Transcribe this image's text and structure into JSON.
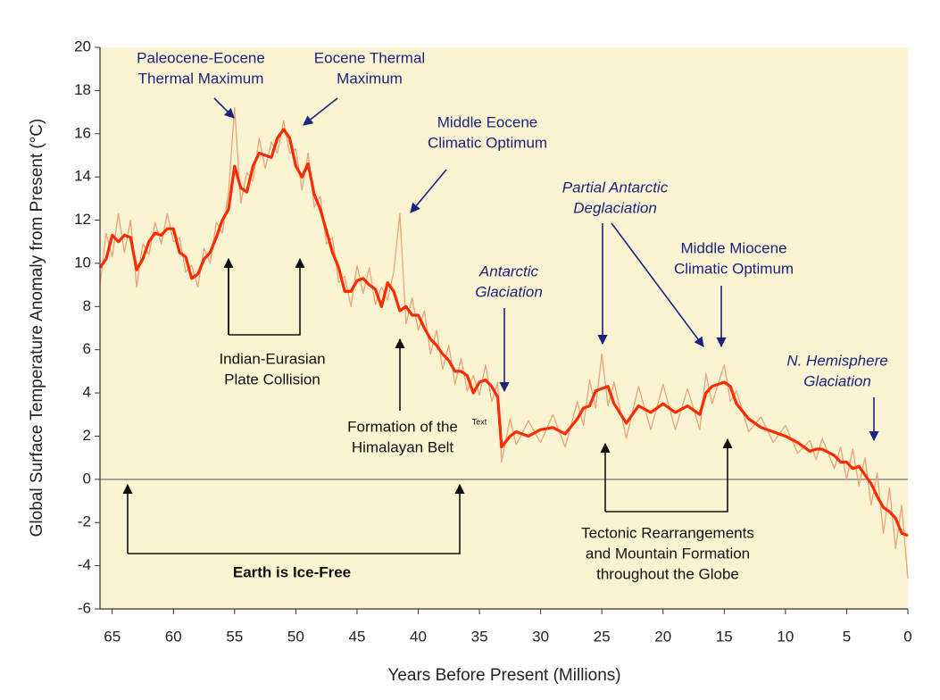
{
  "chart_data": {
    "type": "line",
    "x_label": "Years Before Present (Millions)",
    "y_label": "Global Surface Temperature Anomaly from Present (°C)",
    "xlim": [
      66,
      0
    ],
    "ylim": [
      -6,
      20
    ],
    "xticks": [
      65,
      60,
      55,
      50,
      45,
      40,
      35,
      30,
      25,
      20,
      15,
      10,
      5,
      0
    ],
    "yticks": [
      -6,
      -4,
      -2,
      0,
      2,
      4,
      6,
      8,
      10,
      12,
      14,
      16,
      18,
      20
    ],
    "zero_line": true,
    "background": "#fbf4d2",
    "x": [
      66,
      65.5,
      65,
      64.5,
      64,
      63.5,
      63,
      62.5,
      62,
      61.5,
      61,
      60.5,
      60,
      59.5,
      59,
      58.5,
      58,
      57.5,
      57,
      56.5,
      56,
      55.5,
      55,
      54.5,
      54,
      53.5,
      53,
      52.5,
      52,
      51.5,
      51,
      50.5,
      50,
      49.5,
      49,
      48.5,
      48,
      47.5,
      47,
      46.5,
      46,
      45.5,
      45,
      44.5,
      44,
      43.5,
      43,
      42.5,
      42,
      41.5,
      41,
      40.5,
      40,
      39.5,
      39,
      38.5,
      38,
      37.5,
      37,
      36.5,
      36,
      35.5,
      35,
      34.5,
      34,
      33.5,
      33.2,
      32.5,
      32,
      31,
      30,
      29,
      28,
      27,
      26.5,
      26,
      25.5,
      25,
      24.5,
      24,
      23,
      22,
      21,
      20,
      19,
      18,
      17,
      16.5,
      16,
      15,
      14.5,
      14,
      13,
      12,
      11,
      10,
      9,
      8,
      7.5,
      7,
      6,
      5.5,
      5,
      4.5,
      4,
      3.5,
      3,
      2.5,
      2,
      1.5,
      1,
      0.5,
      0
    ],
    "series": [
      {
        "color": "#e9a47a",
        "width": 1.3,
        "values": [
          9.0,
          11.4,
          10.3,
          12.3,
          10.5,
          12.0,
          8.9,
          10.9,
          10.4,
          11.9,
          10.9,
          12.3,
          11.0,
          11.2,
          9.6,
          9.9,
          8.9,
          10.7,
          10.0,
          11.9,
          11.4,
          13.3,
          17.2,
          12.8,
          14.2,
          13.8,
          15.8,
          14.4,
          15.6,
          15.1,
          16.6,
          15.1,
          15.3,
          13.4,
          15.1,
          12.6,
          13.1,
          10.9,
          11.2,
          9.1,
          9.4,
          8.0,
          9.9,
          8.6,
          9.8,
          8.1,
          8.9,
          8.3,
          9.6,
          12.3,
          7.2,
          8.4,
          6.9,
          7.8,
          5.8,
          6.9,
          5.1,
          6.2,
          4.4,
          5.6,
          4.1,
          4.8,
          3.9,
          5.3,
          3.6,
          4.5,
          0.8,
          2.8,
          1.6,
          2.7,
          1.7,
          3.0,
          1.5,
          3.6,
          2.5,
          4.6,
          3.3,
          5.8,
          3.4,
          4.5,
          1.9,
          4.3,
          2.3,
          4.4,
          2.3,
          4.2,
          2.3,
          4.9,
          3.5,
          5.3,
          3.6,
          4.1,
          2.2,
          2.9,
          1.7,
          2.5,
          1.2,
          1.8,
          0.9,
          1.9,
          0.5,
          1.5,
          0.0,
          1.4,
          -0.3,
          1.0,
          -1.2,
          0.3,
          -2.5,
          -0.4,
          -3.2,
          -1.2,
          -4.6
        ]
      },
      {
        "color": "#ff2a00",
        "width": 3.2,
        "values": [
          9.8,
          10.2,
          11.3,
          11.0,
          11.3,
          11.2,
          9.7,
          10.2,
          11.0,
          11.4,
          11.3,
          11.6,
          11.6,
          10.5,
          10.3,
          9.3,
          9.5,
          10.2,
          10.5,
          11.2,
          12.0,
          12.5,
          14.5,
          13.5,
          13.3,
          14.5,
          15.1,
          15.0,
          14.9,
          15.8,
          16.2,
          15.8,
          14.5,
          14.0,
          14.6,
          13.2,
          12.5,
          11.5,
          10.5,
          9.8,
          8.7,
          8.7,
          9.2,
          9.3,
          9.0,
          8.8,
          8.0,
          9.1,
          8.7,
          7.8,
          8.0,
          7.6,
          7.6,
          7.0,
          6.5,
          6.2,
          5.8,
          5.5,
          5.0,
          5.0,
          4.8,
          4.0,
          4.5,
          4.6,
          4.3,
          3.8,
          1.5,
          2.0,
          2.2,
          2.0,
          2.3,
          2.4,
          2.1,
          2.8,
          3.3,
          3.4,
          4.1,
          4.2,
          4.3,
          3.5,
          2.6,
          3.4,
          3.1,
          3.5,
          3.1,
          3.4,
          3.0,
          4.0,
          4.3,
          4.5,
          4.3,
          3.5,
          2.8,
          2.4,
          2.2,
          2.0,
          1.7,
          1.3,
          1.4,
          1.4,
          1.1,
          0.8,
          0.8,
          0.5,
          0.6,
          0.2,
          -0.2,
          -0.8,
          -1.3,
          -1.5,
          -1.8,
          -2.5,
          -2.6
        ]
      }
    ],
    "annotations": [
      {
        "lines": [
          "Paleocene-Eocene",
          "Thermal Maximum"
        ],
        "color": "#1a237e",
        "style": "normal"
      },
      {
        "lines": [
          "Eocene Thermal",
          "Maximum"
        ],
        "color": "#1a237e",
        "style": "normal"
      },
      {
        "lines": [
          "Middle Eocene",
          "Climatic Optimum"
        ],
        "color": "#1a237e",
        "style": "normal"
      },
      {
        "lines": [
          "Partial Antarctic",
          "Deglaciation"
        ],
        "color": "#1a237e",
        "style": "italic"
      },
      {
        "lines": [
          "Antarctic",
          "Glaciation"
        ],
        "color": "#1a237e",
        "style": "italic"
      },
      {
        "lines": [
          "Middle Miocene",
          "Climatic Optimum"
        ],
        "color": "#1a237e",
        "style": "normal"
      },
      {
        "lines": [
          "N. Hemisphere",
          "Glaciation"
        ],
        "color": "#1a237e",
        "style": "italic"
      },
      {
        "lines": [
          "Indian-Eurasian",
          "Plate Collision"
        ],
        "color": "#111111",
        "style": "normal"
      },
      {
        "lines": [
          "Formation of the",
          "Himalayan Belt"
        ],
        "color": "#111111",
        "style": "normal"
      },
      {
        "lines": [
          "Tectonic Rearrangements",
          "and Mountain Formation",
          "throughout the Globe"
        ],
        "color": "#111111",
        "style": "normal"
      },
      {
        "lines": [
          "Earth is Ice-Free"
        ],
        "color": "#111111",
        "style": "bold"
      },
      {
        "lines": [
          "Text"
        ],
        "color": "#111111",
        "style": "small"
      }
    ]
  }
}
